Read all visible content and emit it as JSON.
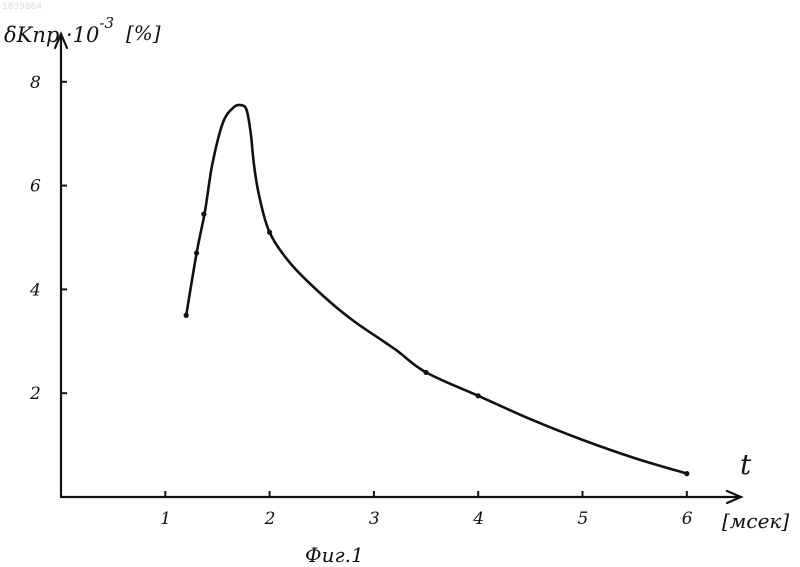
{
  "doc_id": "1839864",
  "chart_data": {
    "type": "line",
    "ylabel": "δKпр ·10",
    "ylabel_exp": "-3",
    "yunit": "[%]",
    "xlabel": "t",
    "xunit": "[мсек]",
    "caption": "Фиг.1",
    "xlim": [
      0,
      6.5
    ],
    "ylim": [
      0,
      8.5
    ],
    "xticks": [
      1,
      2,
      3,
      4,
      5,
      6
    ],
    "yticks": [
      2,
      4,
      6,
      8
    ],
    "grid": false,
    "series": [
      {
        "x": [
          1.2,
          1.3,
          1.38,
          1.45,
          1.55,
          1.65,
          1.73,
          1.78,
          1.82,
          1.85,
          1.9,
          2.0,
          2.2,
          2.5,
          2.8,
          3.2,
          3.5,
          4.0,
          4.5,
          5.0,
          5.5,
          6.0
        ],
        "y": [
          3.5,
          4.7,
          5.5,
          6.4,
          7.2,
          7.5,
          7.55,
          7.45,
          7.0,
          6.4,
          5.8,
          5.1,
          4.5,
          3.9,
          3.4,
          2.85,
          2.4,
          1.95,
          1.5,
          1.1,
          0.75,
          0.45
        ],
        "markers": [
          {
            "x": 1.2,
            "y": 3.5
          },
          {
            "x": 1.3,
            "y": 4.7
          },
          {
            "x": 1.37,
            "y": 5.45
          },
          {
            "x": 2.0,
            "y": 5.1
          },
          {
            "x": 3.5,
            "y": 2.4
          },
          {
            "x": 4.0,
            "y": 1.95
          },
          {
            "x": 6.0,
            "y": 0.45
          }
        ]
      }
    ]
  }
}
